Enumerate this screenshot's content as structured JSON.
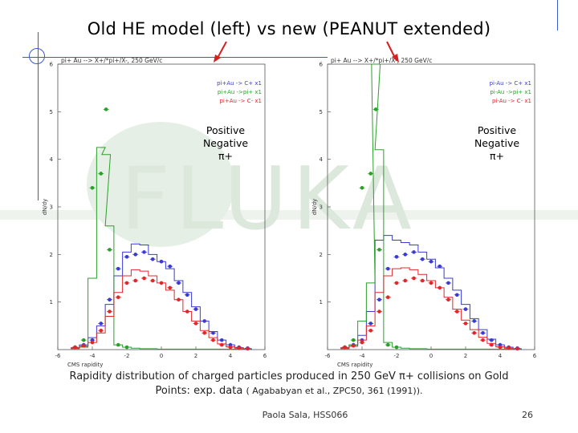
{
  "slide": {
    "title": "Old HE model (left) vs new (PEANUT extended)",
    "caption_line1": "Rapidity distribution of charged particles produced in 250 GeV π+ collisions on Gold",
    "caption_line2_a": "Points: exp. data",
    "caption_line2_b": "( Agababyan et al., ZPC50, 361 (1991)).",
    "footer_author": "Paola Sala, HSS066",
    "footer_page": "26",
    "watermark_text": "FLUKA",
    "legend_overlay": [
      "Positive",
      "Negative",
      "π+"
    ]
  },
  "colors": {
    "positive": "#3b3bd4",
    "negative": "#e0282a",
    "pi_plus": "#2aa02a",
    "deco": "#3a5bd0",
    "arrow": "#d42020"
  },
  "chart_data": [
    {
      "type": "line",
      "panel": "left",
      "title": "pi+ Au --> X+/*pi+/X-, 250 GeV/c",
      "xlabel": "CMS rapidity",
      "ylabel": "dN/dy",
      "xlim": [
        -6,
        6
      ],
      "ylim": [
        0,
        6
      ],
      "xticks": [
        "-6",
        "-4",
        "-2",
        "0",
        "2",
        "4",
        "6"
      ],
      "yticks": [
        "1",
        "2",
        "3",
        "4",
        "5",
        "6"
      ],
      "legend": [
        "pi+Au -> C+ x1",
        "pi+Au ->pi+ x1",
        "pi+Au -> C- x1"
      ],
      "series": [
        {
          "name": "pi+Au -> C+ x1",
          "color_key": "positive",
          "x": [
            -5,
            -4.5,
            -4,
            -3.5,
            -3,
            -2.5,
            -2,
            -1.5,
            -1,
            -0.5,
            0,
            0.5,
            1,
            1.5,
            2,
            2.5,
            3,
            3.5,
            4,
            4.5,
            5
          ],
          "mc": [
            0.04,
            0.1,
            0.25,
            0.5,
            0.95,
            1.55,
            2.05,
            2.22,
            2.2,
            2.0,
            1.85,
            1.7,
            1.45,
            1.2,
            0.9,
            0.6,
            0.38,
            0.2,
            0.1,
            0.04,
            0.02
          ],
          "data": [
            0.05,
            0.1,
            0.2,
            0.55,
            1.05,
            1.7,
            1.95,
            2.0,
            2.05,
            1.9,
            1.85,
            1.75,
            1.4,
            1.15,
            0.85,
            0.6,
            0.35,
            0.2,
            0.1,
            0.05,
            0.03
          ]
        },
        {
          "name": "pi+Au ->pi+ x1",
          "color_key": "pi_plus",
          "x": [
            -5,
            -4.5,
            -4,
            -3.5,
            -3.2,
            -3,
            -2.5,
            -2,
            -1.5,
            -1,
            -0.5,
            0,
            0.5,
            1,
            1.5,
            2,
            2.5,
            3,
            3.5,
            4,
            4.5,
            5
          ],
          "mc": [
            0.02,
            0.05,
            1.5,
            4.25,
            4.1,
            2.6,
            0.1,
            0.05,
            0.03,
            0.02,
            0.02,
            0.01,
            0.01,
            0.01,
            0.01,
            0.01,
            0.01,
            0.01,
            0.01,
            0.01,
            0.01,
            0.01
          ],
          "data": [
            0.05,
            0.2,
            3.4,
            3.7,
            5.05,
            2.1,
            0.1,
            0.05,
            null,
            null,
            null,
            null,
            null,
            null,
            null,
            null,
            null,
            null,
            null,
            null,
            null,
            null
          ]
        },
        {
          "name": "pi+Au -> C- x1",
          "color_key": "negative",
          "x": [
            -5,
            -4.5,
            -4,
            -3.5,
            -3,
            -2.5,
            -2,
            -1.5,
            -1,
            -0.5,
            0,
            0.5,
            1,
            1.5,
            2,
            2.5,
            3,
            3.5,
            4,
            4.5,
            5
          ],
          "mc": [
            0.03,
            0.07,
            0.15,
            0.35,
            0.7,
            1.2,
            1.55,
            1.68,
            1.65,
            1.55,
            1.4,
            1.25,
            1.05,
            0.8,
            0.6,
            0.4,
            0.25,
            0.12,
            0.06,
            0.03,
            0.01
          ],
          "data": [
            0.05,
            0.08,
            0.15,
            0.4,
            0.8,
            1.1,
            1.4,
            1.45,
            1.5,
            1.45,
            1.4,
            1.3,
            1.05,
            0.8,
            0.55,
            0.35,
            0.2,
            0.1,
            0.05,
            0.03,
            0.02
          ]
        }
      ]
    },
    {
      "type": "line",
      "panel": "right",
      "title": "pi+ Au --> X+/*pi+/X-, 250 GeV/c",
      "xlabel": "CMS rapidity",
      "ylabel": "dN/dy",
      "xlim": [
        -6,
        6
      ],
      "ylim": [
        0,
        6
      ],
      "xticks": [
        "-6",
        "-4",
        "-2",
        "0",
        "2",
        "4",
        "6"
      ],
      "yticks": [
        "1",
        "2",
        "3",
        "4",
        "5",
        "6"
      ],
      "legend": [
        "pi-Au -> C+ x1",
        "pi-Au ->pi+ x1",
        "pi-Au -> C- x1"
      ],
      "series": [
        {
          "name": "pi-Au -> C+ x1",
          "color_key": "positive",
          "x": [
            -5,
            -4.5,
            -4,
            -3.5,
            -3,
            -2.5,
            -2,
            -1.5,
            -1,
            -0.5,
            0,
            0.5,
            1,
            1.5,
            2,
            2.5,
            3,
            3.5,
            4,
            4.5,
            5
          ],
          "mc": [
            0.04,
            0.1,
            0.3,
            0.8,
            2.3,
            2.4,
            2.3,
            2.25,
            2.2,
            2.05,
            1.9,
            1.72,
            1.5,
            1.25,
            0.95,
            0.65,
            0.42,
            0.22,
            0.1,
            0.05,
            0.02
          ],
          "data": [
            0.05,
            0.1,
            0.2,
            0.55,
            1.05,
            1.7,
            1.95,
            2.0,
            2.05,
            1.9,
            1.85,
            1.75,
            1.4,
            1.15,
            0.85,
            0.6,
            0.35,
            0.2,
            0.1,
            0.05,
            0.03
          ]
        },
        {
          "name": "pi-Au ->pi+ x1",
          "color_key": "pi_plus",
          "x": [
            -5,
            -4.5,
            -4,
            -3.5,
            -3.2,
            -3,
            -2.5,
            -2,
            -1.5,
            -1,
            -0.5,
            0,
            0.5,
            1,
            1.5,
            2,
            2.5,
            3,
            3.5,
            4,
            4.5,
            5
          ],
          "mc": [
            0.02,
            0.1,
            0.6,
            1.4,
            6.0,
            4.2,
            0.15,
            0.05,
            0.03,
            0.02,
            0.02,
            0.01,
            0.01,
            0.01,
            0.01,
            0.01,
            0.01,
            0.01,
            0.01,
            0.01,
            0.01,
            0.01
          ],
          "data": [
            0.05,
            0.2,
            3.4,
            3.7,
            5.05,
            2.1,
            0.1,
            0.05,
            null,
            null,
            null,
            null,
            null,
            null,
            null,
            null,
            null,
            null,
            null,
            null,
            null,
            null
          ]
        },
        {
          "name": "pi-Au -> C- x1",
          "color_key": "negative",
          "x": [
            -5,
            -4.5,
            -4,
            -3.5,
            -3,
            -2.5,
            -2,
            -1.5,
            -1,
            -0.5,
            0,
            0.5,
            1,
            1.5,
            2,
            2.5,
            3,
            3.5,
            4,
            4.5,
            5
          ],
          "mc": [
            0.03,
            0.07,
            0.2,
            0.5,
            1.2,
            1.55,
            1.7,
            1.72,
            1.68,
            1.58,
            1.45,
            1.3,
            1.1,
            0.85,
            0.62,
            0.42,
            0.26,
            0.13,
            0.06,
            0.03,
            0.01
          ],
          "data": [
            0.05,
            0.08,
            0.15,
            0.4,
            0.8,
            1.1,
            1.4,
            1.45,
            1.5,
            1.45,
            1.4,
            1.3,
            1.05,
            0.8,
            0.55,
            0.35,
            0.2,
            0.1,
            0.05,
            0.03,
            0.02
          ]
        }
      ]
    }
  ]
}
